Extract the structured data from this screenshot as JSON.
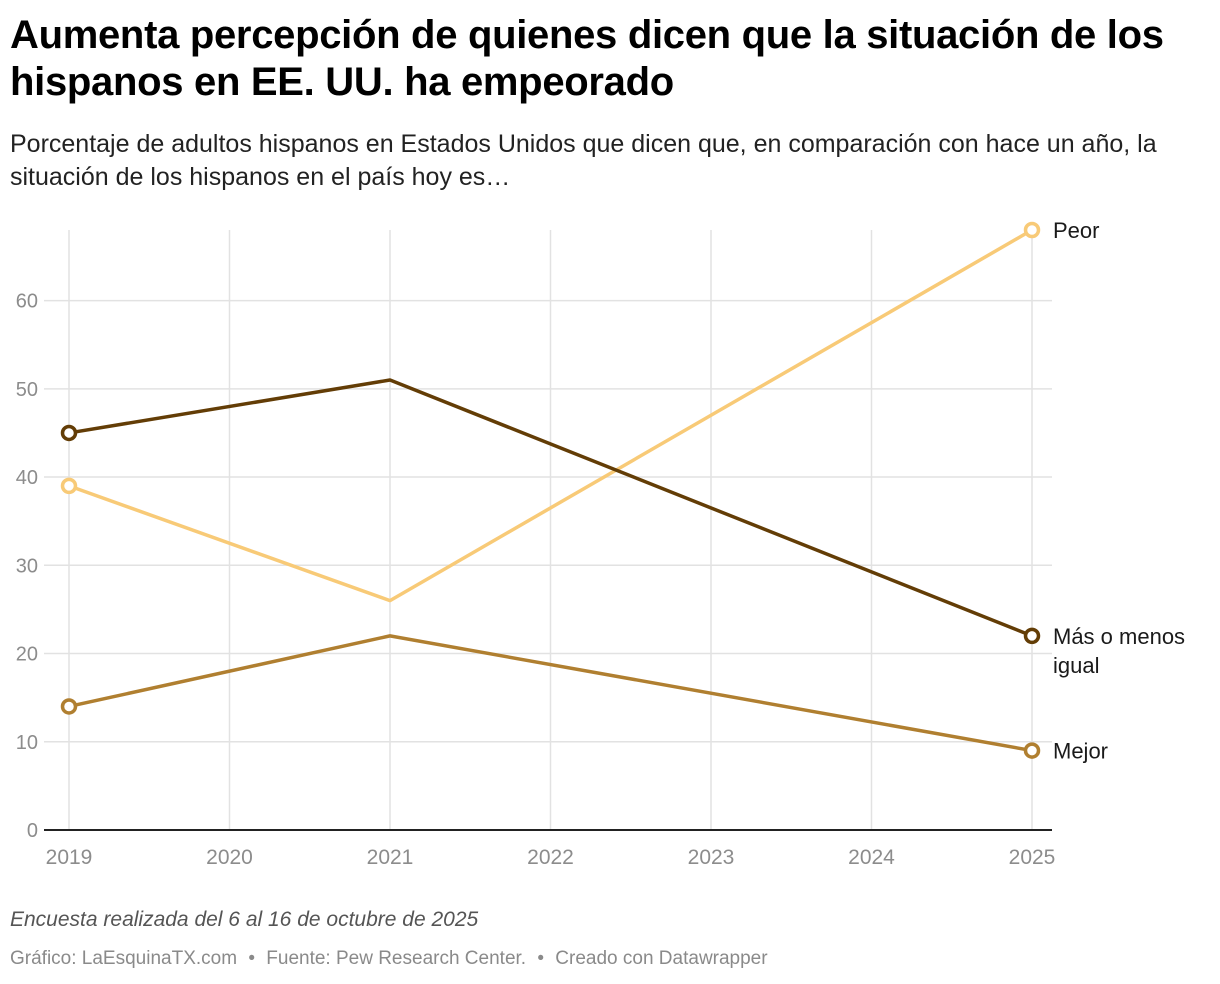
{
  "title": "Aumenta percepción de quienes dicen que la situación de los hispanos en EE. UU. ha empeorado",
  "subtitle": "Porcentaje de adultos hispanos en Estados Unidos que dicen que, en comparación con hace un año, la situación de los hispanos en el país hoy es…",
  "note": "Encuesta realizada del 6 al 16 de octubre de 2025",
  "footer": {
    "credit": "Gráfico: LaEsquinaTX.com",
    "source": "Fuente: Pew Research Center.",
    "tool": "Creado con Datawrapper",
    "separator": "•"
  },
  "colors": {
    "peor": "#f8ca77",
    "igual": "#633d06",
    "mejor": "#b07f30",
    "grid": "#e2e2e2",
    "axis": "#222222",
    "tick": "#8c8c8c"
  },
  "chart_data": {
    "type": "line",
    "title": "Aumenta percepción de quienes dicen que la situación de los hispanos en EE. UU. ha empeorado",
    "xlabel": "",
    "ylabel": "",
    "xlim": [
      2019,
      2025
    ],
    "ylim": [
      0,
      68
    ],
    "x_ticks": [
      "2019",
      "2020",
      "2021",
      "2022",
      "2023",
      "2024",
      "2025"
    ],
    "y_ticks": [
      0,
      10,
      20,
      30,
      40,
      50,
      60
    ],
    "grid": true,
    "legend": "direct labels at line ends",
    "series": [
      {
        "name": "Peor",
        "label_lines": [
          "Peor"
        ],
        "color_key": "peor",
        "x": [
          2019,
          2021,
          2025
        ],
        "values": [
          39,
          26,
          68
        ]
      },
      {
        "name": "Más o menos igual",
        "label_lines": [
          "Más o menos",
          "igual"
        ],
        "color_key": "igual",
        "x": [
          2019,
          2021,
          2025
        ],
        "values": [
          45,
          51,
          22
        ]
      },
      {
        "name": "Mejor",
        "label_lines": [
          "Mejor"
        ],
        "color_key": "mejor",
        "x": [
          2019,
          2021,
          2025
        ],
        "values": [
          14,
          22,
          9
        ]
      }
    ]
  }
}
